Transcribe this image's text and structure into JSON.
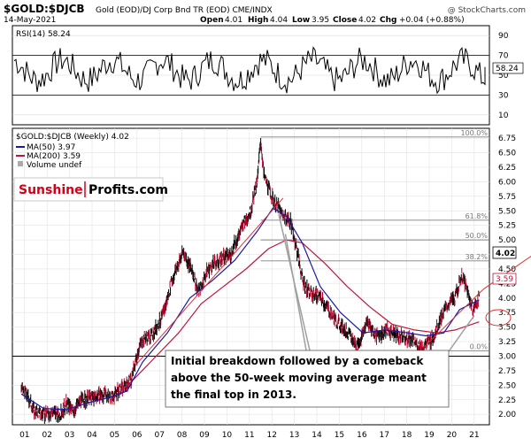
{
  "header": {
    "symbol": "$GOLD:$DJCB",
    "description": "Gold (EOD)/DJ Corp Bnd TR (EOD)  CME/INDX",
    "watermark": "@ StockCharts.com",
    "date": "14-May-2021",
    "open_label": "Open",
    "open": "4.01",
    "high_label": "High",
    "high": "4.04",
    "low_label": "Low",
    "low": "3.95",
    "close_label": "Close",
    "close": "4.02",
    "chg_label": "Chg",
    "chg": "+0.04 (+0.88%)"
  },
  "brand": {
    "part1": "Sunshine",
    "part2": "Profits.com"
  },
  "colors": {
    "price": "#000000",
    "ma50": "#1a1aa6",
    "ma200": "#c0143c",
    "trend": "#e03030",
    "brand_red": "#d0021b",
    "fib": "#808080",
    "callout": "#a0a0a0"
  },
  "chart_data": [
    {
      "type": "line",
      "title": "RSI(14) 58.24",
      "series": [
        {
          "name": "RSI(14)",
          "last": 58.24
        }
      ],
      "ylim": [
        0,
        100
      ],
      "yticks": [
        10,
        30,
        50,
        70,
        90
      ],
      "reference_lines": [
        30,
        70
      ],
      "last_value_label": "58.24"
    },
    {
      "type": "line",
      "title": "$GOLD:$DJCB (Weekly) 4.02",
      "legend": [
        {
          "name": "MA(50) 3.97",
          "color": "#1a1aa6"
        },
        {
          "name": "MA(200) 3.59",
          "color": "#c0143c"
        },
        {
          "name": "Volume undef",
          "color": "#888888"
        }
      ],
      "x_tick_labels": [
        "01",
        "02",
        "03",
        "04",
        "05",
        "06",
        "07",
        "08",
        "09",
        "10",
        "11",
        "12",
        "13",
        "14",
        "15",
        "16",
        "17",
        "18",
        "19",
        "20",
        "21"
      ],
      "ylim": [
        1.82,
        6.92
      ],
      "yticks": [
        "2.00",
        "2.25",
        "2.50",
        "2.75",
        "3.00",
        "3.25",
        "3.50",
        "3.75",
        "4.00",
        "4.25",
        "4.50",
        "4.75",
        "5.00",
        "5.25",
        "5.50",
        "5.75",
        "6.00",
        "6.25",
        "6.50",
        "6.75"
      ],
      "price_points": [
        [
          2001,
          2.45
        ],
        [
          2001.3,
          2.3
        ],
        [
          2001.6,
          2.05
        ],
        [
          2002,
          2.0
        ],
        [
          2002.4,
          2.05
        ],
        [
          2002.7,
          1.98
        ],
        [
          2003,
          2.18
        ],
        [
          2003.3,
          2.05
        ],
        [
          2003.6,
          2.22
        ],
        [
          2003.9,
          2.25
        ],
        [
          2004.3,
          2.3
        ],
        [
          2004.7,
          2.35
        ],
        [
          2005,
          2.3
        ],
        [
          2005.5,
          2.45
        ],
        [
          2005.9,
          2.6
        ],
        [
          2006.2,
          3.1
        ],
        [
          2006.4,
          3.3
        ],
        [
          2006.8,
          3.35
        ],
        [
          2007.3,
          3.7
        ],
        [
          2007.7,
          4.3
        ],
        [
          2008.2,
          4.8
        ],
        [
          2008.5,
          4.55
        ],
        [
          2008.9,
          4.1
        ],
        [
          2009.3,
          4.5
        ],
        [
          2009.8,
          4.65
        ],
        [
          2010.3,
          4.75
        ],
        [
          2010.8,
          5.2
        ],
        [
          2011.2,
          5.5
        ],
        [
          2011.5,
          6.0
        ],
        [
          2011.65,
          6.75
        ],
        [
          2011.8,
          6.1
        ],
        [
          2012.2,
          5.7
        ],
        [
          2012.6,
          5.45
        ],
        [
          2013.0,
          5.3
        ],
        [
          2013.3,
          4.75
        ],
        [
          2013.55,
          4.25
        ],
        [
          2013.8,
          4.1
        ],
        [
          2014.2,
          4.05
        ],
        [
          2014.6,
          3.85
        ],
        [
          2015.0,
          3.6
        ],
        [
          2015.5,
          3.42
        ],
        [
          2015.95,
          3.15
        ],
        [
          2016.4,
          3.6
        ],
        [
          2016.8,
          3.35
        ],
        [
          2017.3,
          3.45
        ],
        [
          2017.8,
          3.35
        ],
        [
          2018.3,
          3.3
        ],
        [
          2018.8,
          3.15
        ],
        [
          2019.3,
          3.3
        ],
        [
          2019.7,
          3.7
        ],
        [
          2020.0,
          3.9
        ],
        [
          2020.3,
          4.0
        ],
        [
          2020.6,
          4.4
        ],
        [
          2020.85,
          4.1
        ],
        [
          2021.1,
          3.8
        ],
        [
          2021.37,
          4.02
        ]
      ],
      "ma50_points": [
        [
          2001,
          2.35
        ],
        [
          2002,
          2.1
        ],
        [
          2003,
          2.08
        ],
        [
          2004,
          2.2
        ],
        [
          2005,
          2.3
        ],
        [
          2005.7,
          2.4
        ],
        [
          2006.4,
          2.9
        ],
        [
          2007.5,
          3.4
        ],
        [
          2008.5,
          4.0
        ],
        [
          2009.5,
          4.3
        ],
        [
          2010.5,
          4.65
        ],
        [
          2011.5,
          5.15
        ],
        [
          2012.2,
          5.55
        ],
        [
          2012.8,
          5.4
        ],
        [
          2013.5,
          4.95
        ],
        [
          2014.3,
          4.2
        ],
        [
          2015.2,
          3.75
        ],
        [
          2016.2,
          3.4
        ],
        [
          2017.2,
          3.45
        ],
        [
          2018.2,
          3.4
        ],
        [
          2019.0,
          3.35
        ],
        [
          2019.8,
          3.4
        ],
        [
          2020.5,
          3.8
        ],
        [
          2021.37,
          3.97
        ]
      ],
      "ma200_points": [
        [
          2005,
          2.25
        ],
        [
          2006,
          2.6
        ],
        [
          2007,
          3.0
        ],
        [
          2008,
          3.4
        ],
        [
          2009,
          3.9
        ],
        [
          2010,
          4.2
        ],
        [
          2011,
          4.5
        ],
        [
          2012,
          4.85
        ],
        [
          2012.8,
          5.0
        ],
        [
          2013.5,
          4.95
        ],
        [
          2014.5,
          4.6
        ],
        [
          2015.5,
          4.2
        ],
        [
          2016.5,
          3.85
        ],
        [
          2017.5,
          3.55
        ],
        [
          2018.5,
          3.45
        ],
        [
          2019.5,
          3.4
        ],
        [
          2020.3,
          3.45
        ],
        [
          2021.37,
          3.59
        ]
      ],
      "fibonacci_levels": [
        {
          "label": "100.0%",
          "value": 6.77
        },
        {
          "label": "61.8%",
          "value": 5.34
        },
        {
          "label": "50.0%",
          "value": 5.0
        },
        {
          "label": "38.2%",
          "value": 4.64
        },
        {
          "label": "0.0%",
          "value": 3.09
        }
      ],
      "horizontal_line": 3.0,
      "last_value_label": "4.02",
      "ma200_value_label": "3.59",
      "ma50_value_label": "3.97",
      "annotation": "Initial breakdown followed by a comeback above the 50-week moving average meant the final top in 2013."
    }
  ]
}
